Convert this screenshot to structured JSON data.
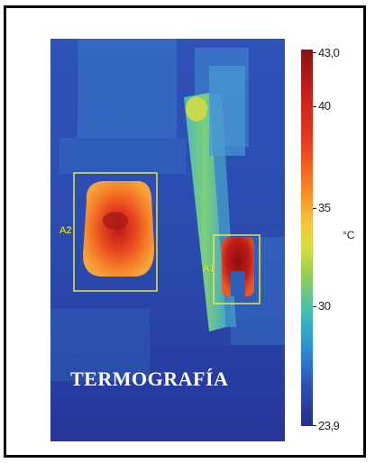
{
  "image": {
    "watermark": "TERMOGRAFÍA",
    "regions": [
      {
        "label": "A2"
      },
      {
        "label": "A1"
      }
    ]
  },
  "scale": {
    "unit": "°C",
    "max_label": "43,0",
    "min_label": "23,9",
    "ticks": [
      "40",
      "35",
      "30"
    ]
  },
  "colors": {
    "frame": "#000000",
    "roi_box": "#e8e64a",
    "background_cold": "#2a3a9c",
    "hot": "#c8201c"
  }
}
